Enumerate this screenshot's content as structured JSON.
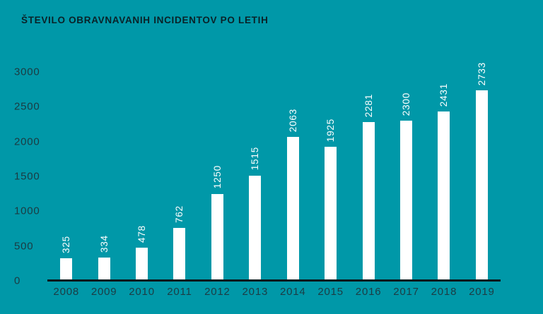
{
  "page": {
    "background_color": "#0098A8"
  },
  "chart_data": {
    "type": "bar",
    "title": "ŠTEVILO OBRAVNAVANIH INCIDENTOV PO LETIH",
    "categories": [
      "2008",
      "2009",
      "2010",
      "2011",
      "2012",
      "2013",
      "2014",
      "2015",
      "2016",
      "2017",
      "2018",
      "2019"
    ],
    "values": [
      325,
      334,
      478,
      762,
      1250,
      1515,
      2063,
      1925,
      2281,
      2300,
      2431,
      2733
    ],
    "yticks": [
      3000,
      2500,
      2000,
      1500,
      1000,
      500,
      0
    ],
    "ylim": [
      0,
      3000
    ],
    "xlabel": "",
    "ylabel": "",
    "grid": false,
    "legend_position": "none",
    "value_labels_rotation": -90,
    "colors": {
      "bar": "#FFFFFF",
      "value_label": "#FFFFFF",
      "title_text": "#0A2228",
      "axis_tick_text": "#1B3B42",
      "axis_line": "#0B171B",
      "background": "#0098A8"
    }
  }
}
